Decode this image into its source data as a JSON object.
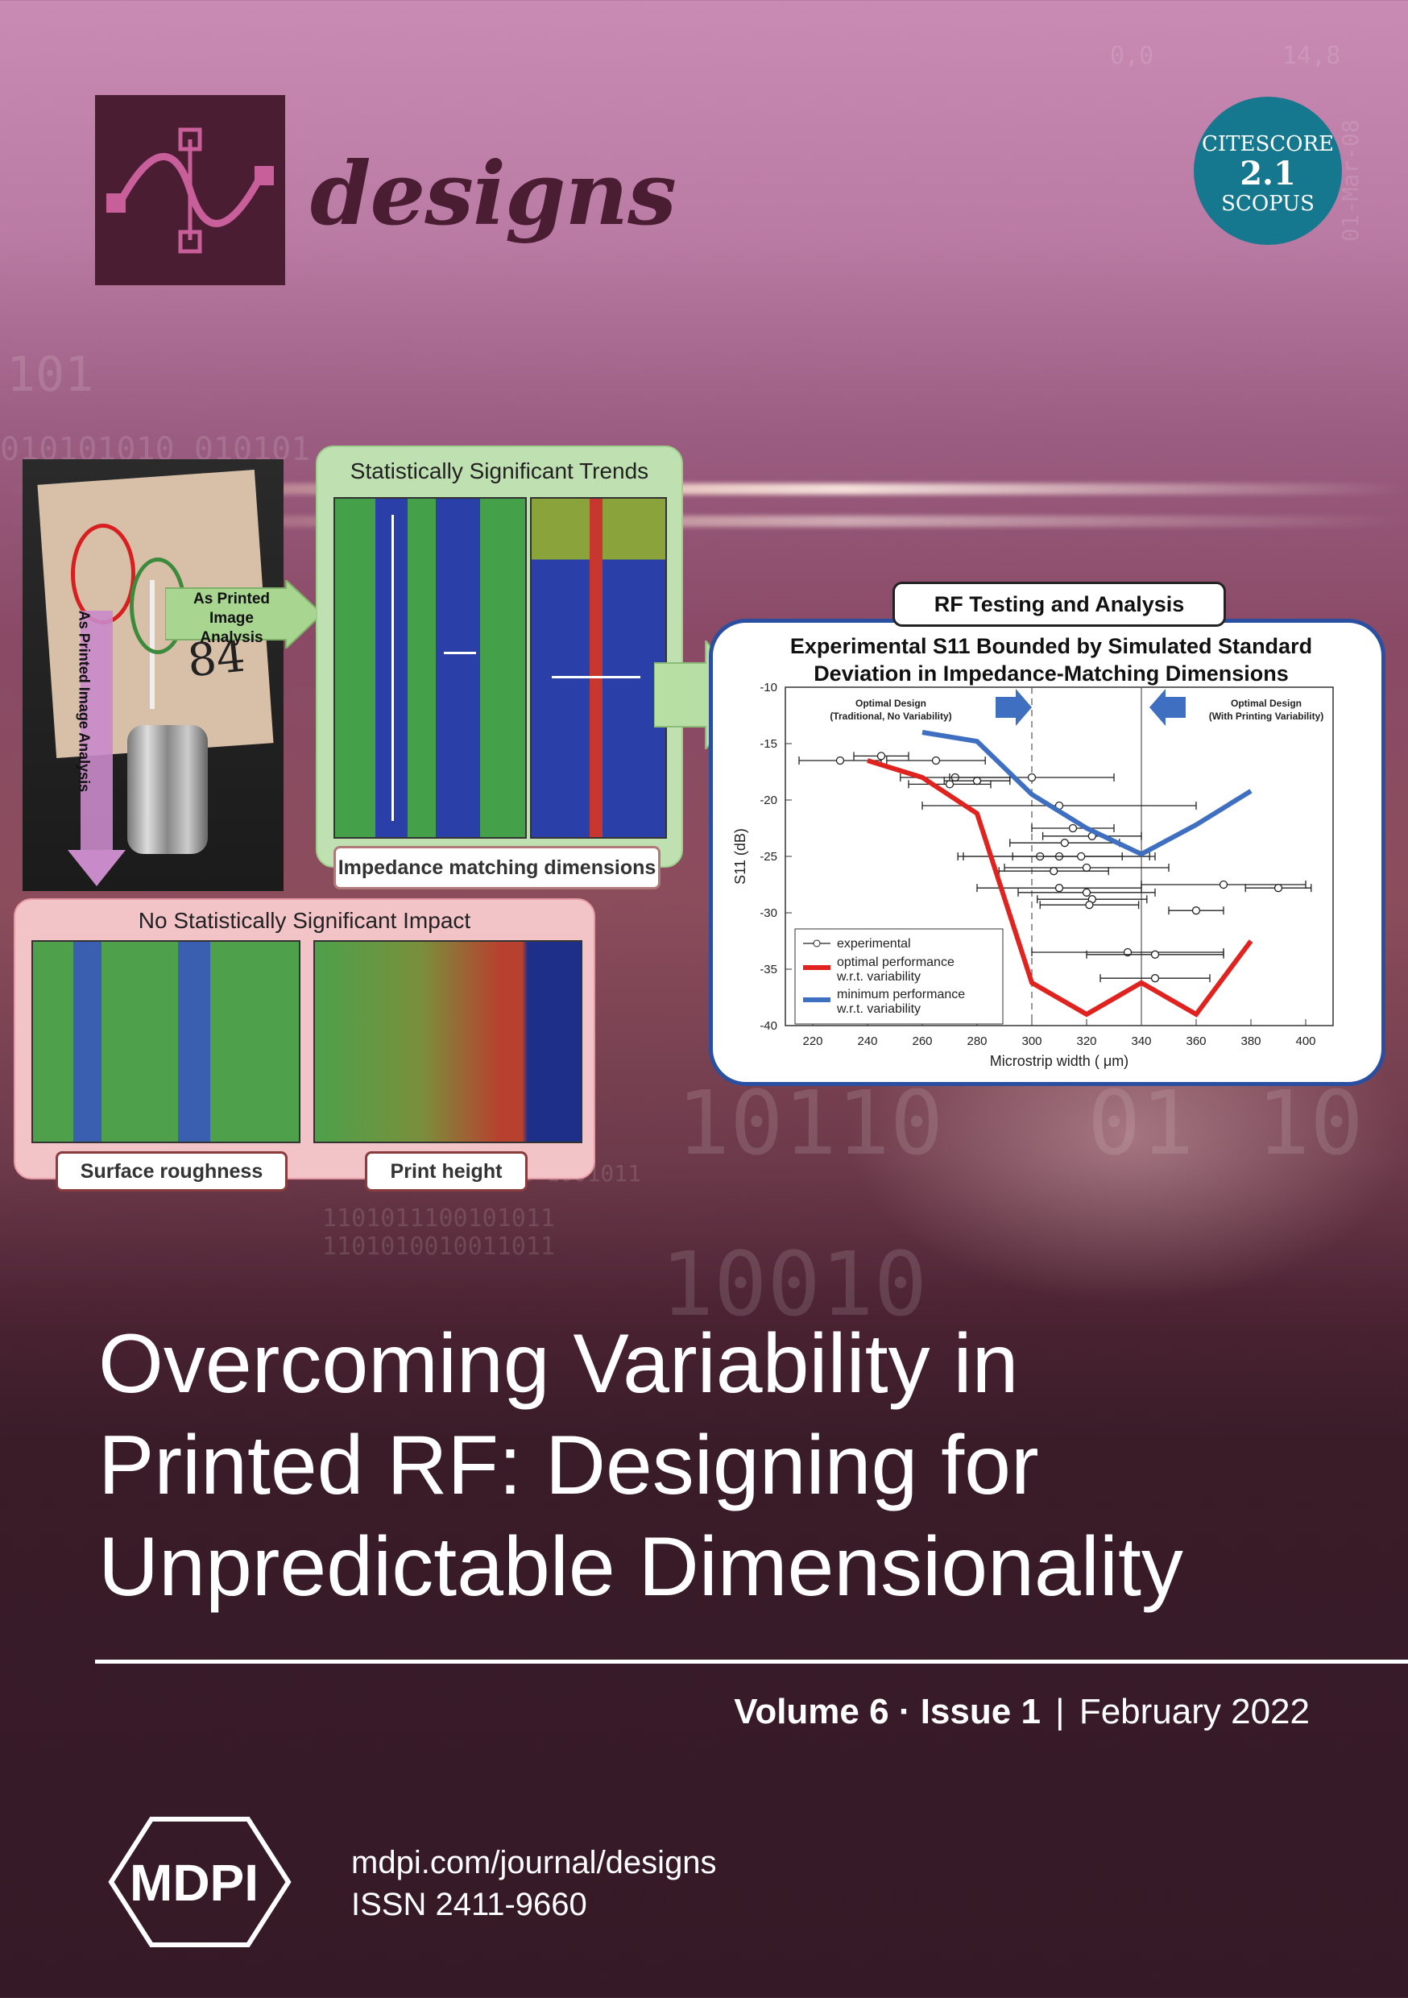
{
  "journal": {
    "name": "designs"
  },
  "citescore": {
    "line1": "CITESCORE",
    "value": "2.1",
    "line2": "SCOPUS"
  },
  "background_text": [
    "101",
    "010101010 010101",
    "0,0",
    "14,8",
    "01-Mar-08",
    "10110",
    "01",
    "10",
    "101011 1001011",
    "1101011100101011",
    "1101010010011011",
    "10010"
  ],
  "figure": {
    "left_label": "As Printed Image Analysis",
    "arrow_label": "As Printed Image Analysis",
    "handwritten": "84",
    "green_panel_title": "Statistically Significant Trends",
    "green_tag": "Impedance matching dimensions",
    "pink_panel_title": "No Statistically Significant Impact",
    "pink_tags": [
      "Surface roughness",
      "Print height"
    ],
    "rf_title": "RF Testing and Analysis"
  },
  "chart_data": {
    "type": "line",
    "title": "Experimental S11 Bounded by Simulated Standard Deviation in Impedance-Matching Dimensions",
    "xlabel": "Microstrip width ( μm)",
    "ylabel": "S11 (dB)",
    "xlim": [
      210,
      410
    ],
    "ylim": [
      -40,
      -10
    ],
    "xticks": [
      220,
      240,
      260,
      280,
      300,
      320,
      340,
      360,
      380,
      400
    ],
    "yticks": [
      -10,
      -15,
      -20,
      -25,
      -30,
      -35,
      -40
    ],
    "grid": false,
    "legend_position": "bottom-left",
    "annotations": [
      {
        "text": "Optimal Design (Traditional, No Variability)",
        "x": 300
      },
      {
        "text": "Optimal Design (With Printing Variability)",
        "x": 340
      }
    ],
    "vlines": [
      300,
      340
    ],
    "series": [
      {
        "name": "experimental",
        "kind": "errorbar",
        "color": "#222222",
        "points": [
          {
            "x": 230,
            "y": -16.5,
            "xerr": 15
          },
          {
            "x": 245,
            "y": -16.1,
            "xerr": 10
          },
          {
            "x": 265,
            "y": -16.5,
            "xerr": 18
          },
          {
            "x": 272,
            "y": -18,
            "xerr": 20
          },
          {
            "x": 280,
            "y": -18.3,
            "xerr": 12
          },
          {
            "x": 270,
            "y": -18.6,
            "xerr": 15
          },
          {
            "x": 300,
            "y": -18,
            "xerr": 30
          },
          {
            "x": 310,
            "y": -20.5,
            "xerr": 50
          },
          {
            "x": 315,
            "y": -22.5,
            "xerr": 15
          },
          {
            "x": 322,
            "y": -23.2,
            "xerr": 18
          },
          {
            "x": 312,
            "y": -23.8,
            "xerr": 20
          },
          {
            "x": 310,
            "y": -25,
            "xerr": 35
          },
          {
            "x": 303,
            "y": -25,
            "xerr": 30
          },
          {
            "x": 318,
            "y": -25,
            "xerr": 25
          },
          {
            "x": 320,
            "y": -26,
            "xerr": 30
          },
          {
            "x": 308,
            "y": -26.3,
            "xerr": 20
          },
          {
            "x": 310,
            "y": -27.8,
            "xerr": 30
          },
          {
            "x": 320,
            "y": -28.2,
            "xerr": 25
          },
          {
            "x": 322,
            "y": -28.8,
            "xerr": 20
          },
          {
            "x": 321,
            "y": -29.3,
            "xerr": 18
          },
          {
            "x": 370,
            "y": -27.5,
            "xerr": 30
          },
          {
            "x": 390,
            "y": -27.8,
            "xerr": 12
          },
          {
            "x": 360,
            "y": -29.8,
            "xerr": 10
          },
          {
            "x": 335,
            "y": -33.5,
            "xerr": 35
          },
          {
            "x": 345,
            "y": -33.7,
            "xerr": 25
          },
          {
            "x": 345,
            "y": -35.8,
            "xerr": 20
          }
        ]
      },
      {
        "name": "optimal performance w.r.t. variability",
        "kind": "line",
        "color": "#e0231f",
        "x": [
          240,
          260,
          280,
          300,
          320,
          340,
          360,
          380
        ],
        "y": [
          -16.5,
          -18,
          -21.2,
          -36.2,
          -39,
          -36.2,
          -39,
          -32.5
        ]
      },
      {
        "name": "minimum performance w.r.t. variability",
        "kind": "line",
        "color": "#3f6fc0",
        "x": [
          260,
          280,
          300,
          320,
          340,
          360,
          380
        ],
        "y": [
          -14,
          -14.8,
          -19.5,
          -22.5,
          -24.8,
          -22.2,
          -19.2
        ]
      }
    ]
  },
  "cover": {
    "title_lines": [
      "Overcoming Variability in",
      "Printed RF: Designing for",
      "Unpredictable Dimensionality"
    ],
    "volume": "Volume 6 · Issue 1",
    "separator": "|",
    "date": "February 2022",
    "publisher": "MDPI",
    "url": "mdpi.com/journal/designs",
    "issn": "ISSN 2411-9660"
  },
  "colors": {
    "brand": "#4a1d32",
    "citescore": "#16788e",
    "red": "#e0231f",
    "blue": "#3f6fc0"
  }
}
